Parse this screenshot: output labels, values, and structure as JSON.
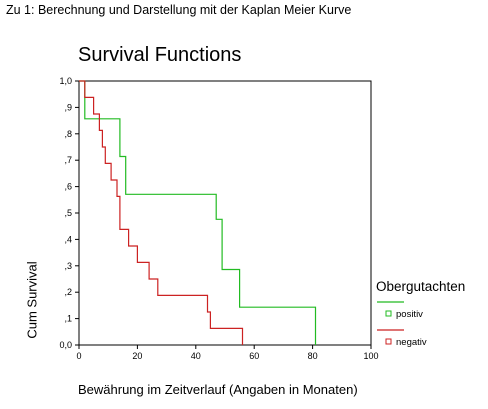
{
  "page": {
    "heading": "Zu 1: Berechnung und Darstellung mit der Kaplan Meier Kurve"
  },
  "chart_data": {
    "type": "line",
    "title": "Survival Functions",
    "xlabel": "Bewährung im Zeitverlauf  (Angaben in Monaten)",
    "ylabel": "Cum Survival",
    "xlim": [
      0,
      100
    ],
    "ylim": [
      0,
      1
    ],
    "x_ticks": [
      "0",
      "20",
      "40",
      "60",
      "80",
      "100"
    ],
    "y_ticks": [
      "0,0",
      ",1",
      ",2",
      ",3",
      ",4",
      ",5",
      ",6",
      ",7",
      ",8",
      ",9",
      "1,0"
    ],
    "grid": false,
    "legend": {
      "title": "Obergutachten",
      "position": "right"
    },
    "series": [
      {
        "name": "positiv",
        "color": "#22bb22",
        "step": true,
        "points": [
          [
            0,
            1.0
          ],
          [
            2,
            1.0
          ],
          [
            2,
            0.857
          ],
          [
            14,
            0.857
          ],
          [
            14,
            0.714
          ],
          [
            16,
            0.714
          ],
          [
            16,
            0.571
          ],
          [
            47,
            0.571
          ],
          [
            47,
            0.476
          ],
          [
            49,
            0.476
          ],
          [
            49,
            0.286
          ],
          [
            55,
            0.286
          ],
          [
            55,
            0.143
          ],
          [
            81,
            0.143
          ],
          [
            81,
            0.0
          ]
        ]
      },
      {
        "name": "negativ",
        "color": "#cc2222",
        "step": true,
        "points": [
          [
            0,
            1.0
          ],
          [
            2,
            1.0
          ],
          [
            2,
            0.938
          ],
          [
            5,
            0.938
          ],
          [
            5,
            0.875
          ],
          [
            7,
            0.875
          ],
          [
            7,
            0.813
          ],
          [
            8,
            0.813
          ],
          [
            8,
            0.75
          ],
          [
            9,
            0.75
          ],
          [
            9,
            0.688
          ],
          [
            11,
            0.688
          ],
          [
            11,
            0.625
          ],
          [
            13,
            0.625
          ],
          [
            13,
            0.563
          ],
          [
            14,
            0.563
          ],
          [
            14,
            0.438
          ],
          [
            17,
            0.438
          ],
          [
            17,
            0.375
          ],
          [
            20,
            0.375
          ],
          [
            20,
            0.313
          ],
          [
            24,
            0.313
          ],
          [
            24,
            0.25
          ],
          [
            27,
            0.25
          ],
          [
            27,
            0.188
          ],
          [
            33,
            0.188
          ],
          [
            33,
            0.188
          ],
          [
            44,
            0.188
          ],
          [
            44,
            0.125
          ],
          [
            45,
            0.125
          ],
          [
            45,
            0.063
          ],
          [
            56,
            0.063
          ],
          [
            56,
            0.0
          ]
        ]
      }
    ]
  }
}
